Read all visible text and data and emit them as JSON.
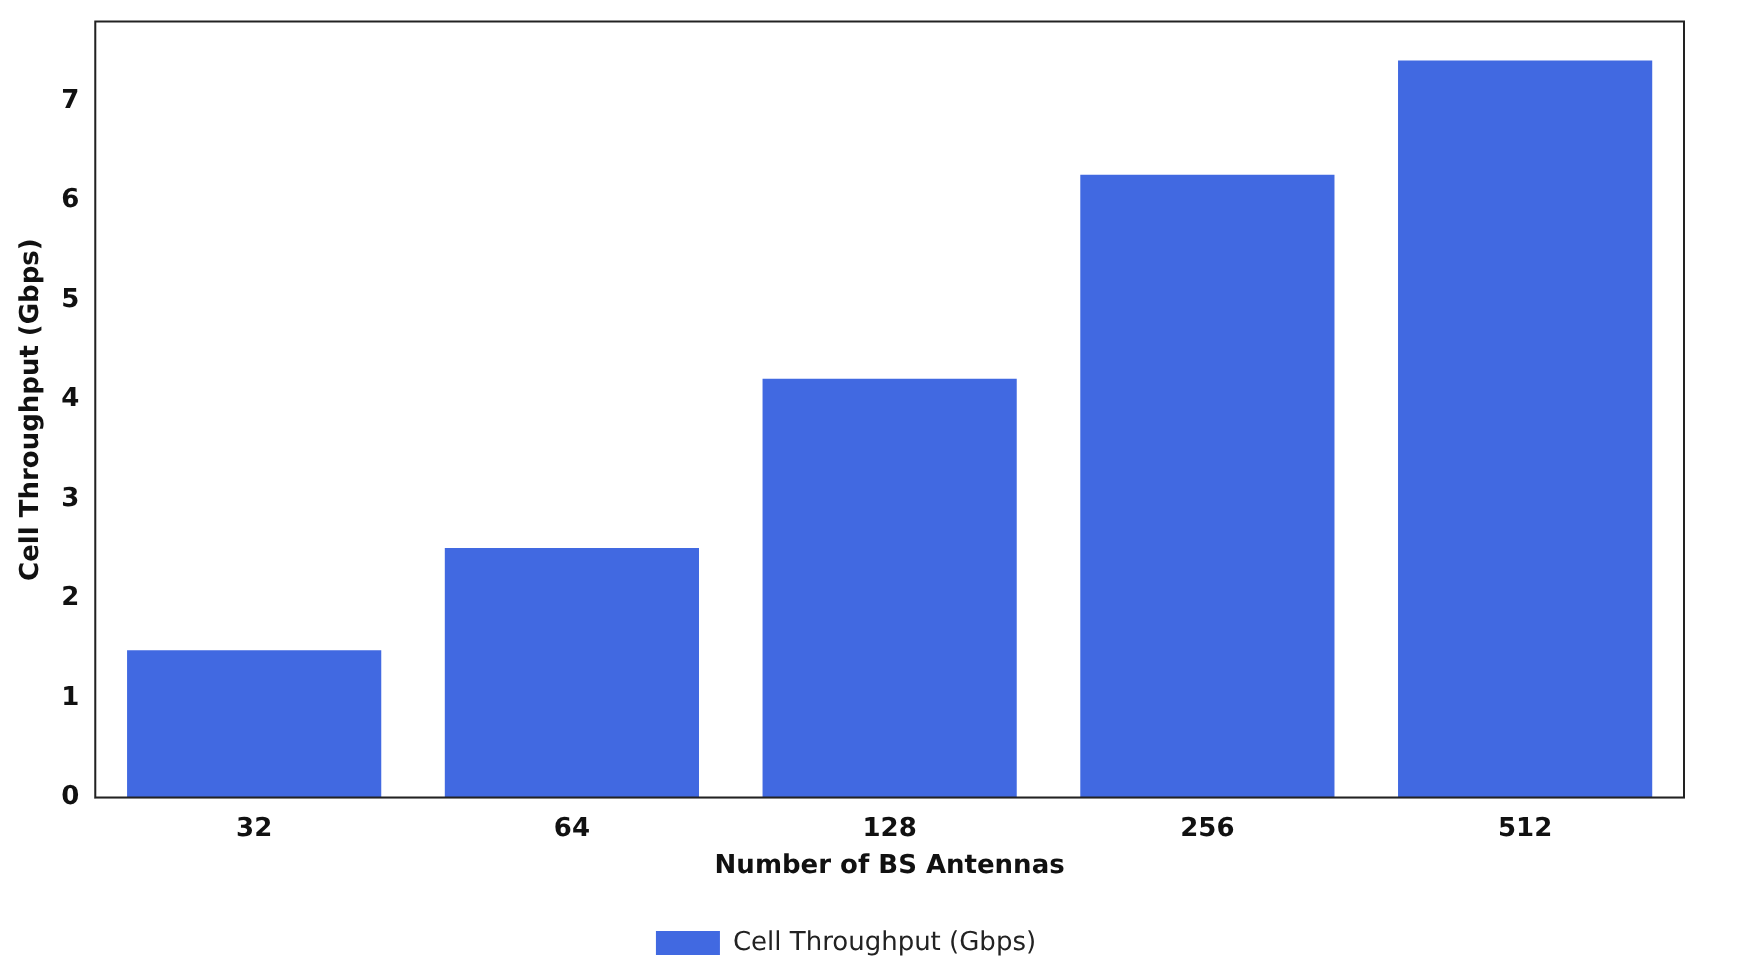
{
  "chart_data": {
    "type": "bar",
    "xlabel": "Number of BS Antennas",
    "ylabel": "Cell Throughput (Gbps)",
    "categories": [
      "32",
      "64",
      "128",
      "256",
      "512"
    ],
    "series": [
      {
        "name": "Cell Throughput (Gbps)",
        "color": "#4169e1",
        "values": [
          1.48,
          2.51,
          4.21,
          6.26,
          7.41
        ]
      }
    ],
    "ylim": [
      0,
      7.8
    ],
    "yticks": [
      0,
      1,
      2,
      3,
      4,
      5,
      6,
      7
    ],
    "grid": false,
    "legend": "bottom"
  }
}
